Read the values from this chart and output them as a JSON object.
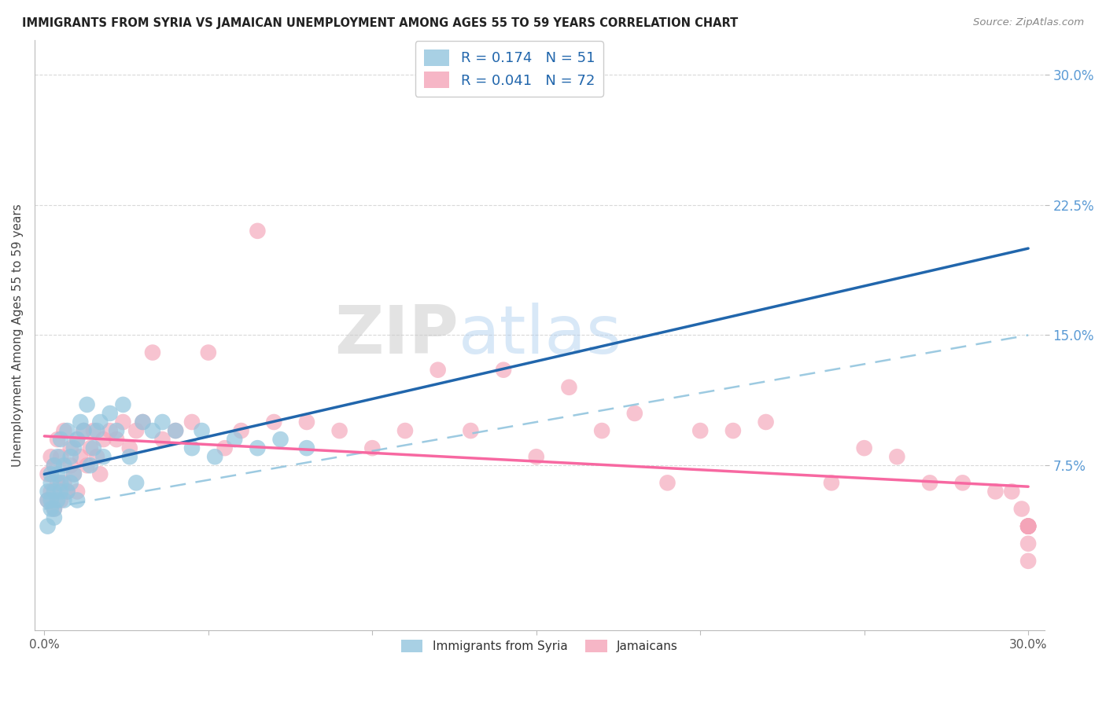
{
  "title": "IMMIGRANTS FROM SYRIA VS JAMAICAN UNEMPLOYMENT AMONG AGES 55 TO 59 YEARS CORRELATION CHART",
  "source": "Source: ZipAtlas.com",
  "ylabel": "Unemployment Among Ages 55 to 59 years",
  "xlim": [
    -0.003,
    0.305
  ],
  "ylim": [
    -0.02,
    0.32
  ],
  "ytick_positions": [
    0.075,
    0.15,
    0.225,
    0.3
  ],
  "ytick_labels": [
    "7.5%",
    "15.0%",
    "22.5%",
    "30.0%"
  ],
  "legend_syria_r": "R = 0.174",
  "legend_syria_n": "N = 51",
  "legend_jam_r": "R = 0.041",
  "legend_jam_n": "N = 72",
  "color_syria": "#92c5de",
  "color_jamaica": "#f4a4b8",
  "color_syria_line": "#2166ac",
  "color_jamaica_line": "#f768a1",
  "color_jamaica_dash": "#92c5de",
  "watermark_zip": "ZIP",
  "watermark_atlas": "atlas",
  "syria_x": [
    0.001,
    0.001,
    0.001,
    0.002,
    0.002,
    0.002,
    0.002,
    0.003,
    0.003,
    0.003,
    0.003,
    0.004,
    0.004,
    0.004,
    0.005,
    0.005,
    0.005,
    0.006,
    0.006,
    0.007,
    0.007,
    0.008,
    0.008,
    0.009,
    0.009,
    0.01,
    0.01,
    0.011,
    0.012,
    0.013,
    0.014,
    0.015,
    0.016,
    0.017,
    0.018,
    0.02,
    0.022,
    0.024,
    0.026,
    0.028,
    0.03,
    0.033,
    0.036,
    0.04,
    0.045,
    0.048,
    0.052,
    0.058,
    0.065,
    0.072,
    0.08
  ],
  "syria_y": [
    0.06,
    0.055,
    0.04,
    0.065,
    0.05,
    0.055,
    0.07,
    0.06,
    0.05,
    0.075,
    0.045,
    0.07,
    0.055,
    0.08,
    0.06,
    0.065,
    0.09,
    0.055,
    0.075,
    0.06,
    0.095,
    0.065,
    0.08,
    0.07,
    0.085,
    0.055,
    0.09,
    0.1,
    0.095,
    0.11,
    0.075,
    0.085,
    0.095,
    0.1,
    0.08,
    0.105,
    0.095,
    0.11,
    0.08,
    0.065,
    0.1,
    0.095,
    0.1,
    0.095,
    0.085,
    0.095,
    0.08,
    0.09,
    0.085,
    0.09,
    0.085
  ],
  "jamaica_x": [
    0.001,
    0.001,
    0.002,
    0.002,
    0.003,
    0.003,
    0.004,
    0.004,
    0.005,
    0.005,
    0.006,
    0.006,
    0.007,
    0.008,
    0.008,
    0.009,
    0.01,
    0.01,
    0.011,
    0.012,
    0.013,
    0.014,
    0.015,
    0.016,
    0.017,
    0.018,
    0.02,
    0.022,
    0.024,
    0.026,
    0.028,
    0.03,
    0.033,
    0.036,
    0.04,
    0.045,
    0.05,
    0.055,
    0.06,
    0.065,
    0.07,
    0.08,
    0.09,
    0.1,
    0.11,
    0.12,
    0.13,
    0.14,
    0.15,
    0.16,
    0.17,
    0.18,
    0.19,
    0.2,
    0.21,
    0.22,
    0.24,
    0.25,
    0.26,
    0.27,
    0.28,
    0.29,
    0.295,
    0.298,
    0.3,
    0.3,
    0.3,
    0.3,
    0.3,
    0.3,
    0.3,
    0.3
  ],
  "jamaica_y": [
    0.07,
    0.055,
    0.08,
    0.06,
    0.075,
    0.05,
    0.09,
    0.065,
    0.055,
    0.08,
    0.065,
    0.095,
    0.06,
    0.085,
    0.075,
    0.07,
    0.06,
    0.09,
    0.08,
    0.095,
    0.075,
    0.085,
    0.095,
    0.08,
    0.07,
    0.09,
    0.095,
    0.09,
    0.1,
    0.085,
    0.095,
    0.1,
    0.14,
    0.09,
    0.095,
    0.1,
    0.14,
    0.085,
    0.095,
    0.21,
    0.1,
    0.1,
    0.095,
    0.085,
    0.095,
    0.13,
    0.095,
    0.13,
    0.08,
    0.12,
    0.095,
    0.105,
    0.065,
    0.095,
    0.095,
    0.1,
    0.065,
    0.085,
    0.08,
    0.065,
    0.065,
    0.06,
    0.06,
    0.05,
    0.04,
    0.04,
    0.04,
    0.03,
    0.04,
    0.02,
    0.04,
    0.04
  ]
}
